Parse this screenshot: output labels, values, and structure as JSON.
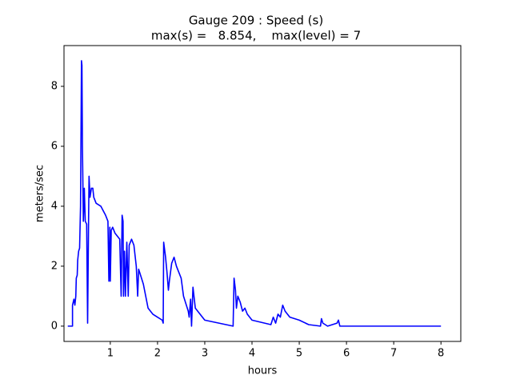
{
  "chart_data": {
    "type": "line",
    "title": "Gauge 209 : Speed (s)",
    "subtitle": "max(s) =   8.854,    max(level) = 7",
    "x_label": "hours",
    "y_label": "meters/sec",
    "xlim": [
      0.02,
      8.42
    ],
    "ylim": [
      -0.51,
      9.36
    ],
    "xticks": [
      1,
      2,
      3,
      4,
      5,
      6,
      7,
      8
    ],
    "yticks": [
      0,
      2,
      4,
      6,
      8
    ],
    "x": [
      0.1,
      0.2,
      0.2,
      0.23,
      0.25,
      0.27,
      0.28,
      0.3,
      0.31,
      0.33,
      0.35,
      0.37,
      0.39,
      0.4,
      0.41,
      0.43,
      0.45,
      0.47,
      0.5,
      0.52,
      0.54,
      0.55,
      0.57,
      0.6,
      0.63,
      0.65,
      0.7,
      0.8,
      0.9,
      0.95,
      0.97,
      0.99,
      1.0,
      1.02,
      1.05,
      1.1,
      1.2,
      1.23,
      1.25,
      1.27,
      1.28,
      1.3,
      1.32,
      1.35,
      1.38,
      1.4,
      1.45,
      1.5,
      1.55,
      1.58,
      1.6,
      1.7,
      1.75,
      1.8,
      1.9,
      2.0,
      2.1,
      2.12,
      2.13,
      2.17,
      2.2,
      2.23,
      2.25,
      2.3,
      2.35,
      2.4,
      2.5,
      2.55,
      2.65,
      2.67,
      2.7,
      2.72,
      2.75,
      2.8,
      3.0,
      3.6,
      3.62,
      3.65,
      3.67,
      3.7,
      3.75,
      3.8,
      3.85,
      3.9,
      4.0,
      4.4,
      4.45,
      4.5,
      4.55,
      4.6,
      4.65,
      4.7,
      4.8,
      5.0,
      5.2,
      5.45,
      5.47,
      5.5,
      5.6,
      5.8,
      5.83,
      5.86,
      8.0
    ],
    "series": [
      {
        "name": "speed",
        "color": "#0000ff",
        "values": [
          0,
          0,
          0.7,
          0.9,
          0.7,
          1.0,
          1.6,
          1.7,
          2.2,
          2.5,
          2.6,
          4,
          8.854,
          8.7,
          6,
          3.5,
          4.6,
          3.5,
          3.4,
          0.1,
          3.5,
          5.0,
          4.3,
          4.6,
          4.6,
          4.3,
          4.1,
          4.0,
          3.7,
          3.5,
          1.5,
          3.3,
          1.5,
          3.2,
          3.3,
          3.1,
          2.9,
          1.0,
          3.7,
          3.5,
          1.0,
          2.5,
          1.0,
          2.8,
          1.0,
          2.7,
          2.9,
          2.7,
          2.0,
          1.0,
          1.9,
          1.4,
          1.0,
          0.6,
          0.4,
          0.3,
          0.2,
          0.1,
          2.8,
          2.3,
          1.8,
          1.2,
          1.5,
          2.1,
          2.3,
          2.0,
          1.6,
          1.0,
          0.5,
          0.3,
          0.9,
          0.0,
          1.3,
          0.6,
          0.2,
          0.0,
          1.6,
          1.2,
          0.6,
          1.0,
          0.8,
          0.5,
          0.6,
          0.4,
          0.2,
          0.05,
          0.3,
          0.1,
          0.4,
          0.3,
          0.7,
          0.5,
          0.3,
          0.2,
          0.05,
          0.0,
          0.25,
          0.1,
          0.0,
          0.1,
          0.2,
          0.0,
          0.0
        ]
      }
    ]
  }
}
